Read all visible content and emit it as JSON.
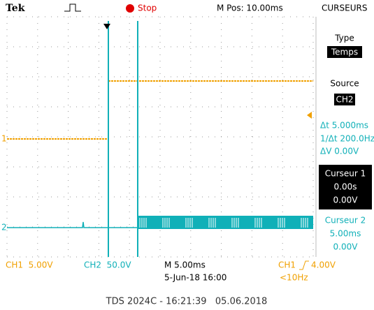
{
  "header": {
    "brand": "Tek",
    "status": "Stop",
    "position": "M Pos: 10.00ms",
    "menu": "CURSEURS"
  },
  "menu": {
    "type_label": "Type",
    "type_value": "Temps",
    "source_label": "Source",
    "source_value": "CH2",
    "delta_t": "Δt 5.000ms",
    "inv_delta_t": "1/Δt 200.0Hz",
    "delta_v": "ΔV 0.00V",
    "cursor1": {
      "label": "Curseur 1",
      "time": "0.00s",
      "volt": "0.00V"
    },
    "cursor2": {
      "label": "Curseur 2",
      "time": "5.00ms",
      "volt": "0.00V"
    }
  },
  "markers": {
    "ch1": "1",
    "ch2": "2"
  },
  "footer": {
    "ch1_scale": "CH1  5.00V",
    "ch2_scale": "CH2  50.0V",
    "timebase": "M 5.00ms",
    "date": "5-Jun-18 16:00",
    "trigger_source": "CH1",
    "trigger_level": "4.00V",
    "trigger_freq": "<10Hz"
  },
  "caption": "TDS 2024C - 16:21:39   05.06.2018"
}
